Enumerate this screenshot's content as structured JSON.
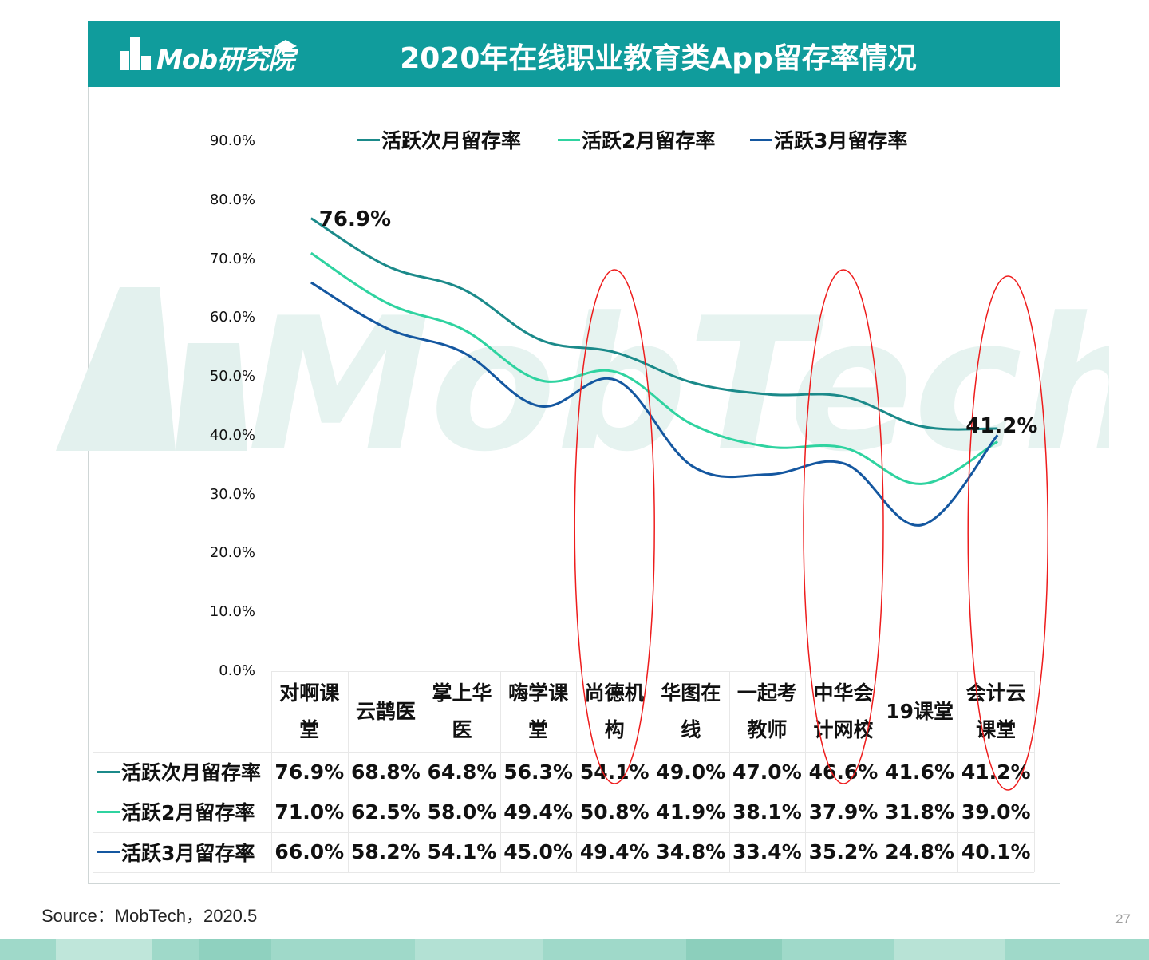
{
  "header": {
    "logo_text": "Mob研究院",
    "title": "2020年在线职业教育类App留存率情况"
  },
  "watermark": {
    "text": "MobTech袤博"
  },
  "footer": {
    "source": "Source：MobTech，2020.5",
    "page_number": "27"
  },
  "colors": {
    "series1": "#1b8a8a",
    "series2": "#2fd3a0",
    "series3": "#1457a0",
    "highlight": "#ee1c1c",
    "header": "#109c9c"
  },
  "chart_data": {
    "type": "line",
    "title": "2020年在线职业教育类App留存率情况",
    "yticks": [
      "90.0%",
      "80.0%",
      "70.0%",
      "60.0%",
      "50.0%",
      "40.0%",
      "30.0%",
      "20.0%",
      "10.0%",
      "0.0%"
    ],
    "ylim": [
      0,
      90
    ],
    "categories": [
      [
        "对啊课",
        "堂"
      ],
      [
        "云鹊医"
      ],
      [
        "掌上华",
        "医"
      ],
      [
        "嗨学课",
        "堂"
      ],
      [
        "尚德机",
        "构"
      ],
      [
        "华图在",
        "线"
      ],
      [
        "一起考",
        "教师"
      ],
      [
        "中华会",
        "计网校"
      ],
      [
        "19课堂"
      ],
      [
        "会计云",
        "课堂"
      ]
    ],
    "series": [
      {
        "name": "活跃次月留存率",
        "values": [
          76.9,
          68.8,
          64.8,
          56.3,
          54.1,
          49.0,
          47.0,
          46.6,
          41.6,
          41.2
        ],
        "labels": [
          "76.9%",
          "68.8%",
          "64.8%",
          "56.3%",
          "54.1%",
          "49.0%",
          "47.0%",
          "46.6%",
          "41.6%",
          "41.2%"
        ]
      },
      {
        "name": "活跃2月留存率",
        "values": [
          71.0,
          62.5,
          58.0,
          49.4,
          50.8,
          41.9,
          38.1,
          37.9,
          31.8,
          39.0
        ],
        "labels": [
          "71.0%",
          "62.5%",
          "58.0%",
          "49.4%",
          "50.8%",
          "41.9%",
          "38.1%",
          "37.9%",
          "31.8%",
          "39.0%"
        ]
      },
      {
        "name": "活跃3月留存率",
        "values": [
          66.0,
          58.2,
          54.1,
          45.0,
          49.4,
          34.8,
          33.4,
          35.2,
          24.8,
          40.1
        ],
        "labels": [
          "66.0%",
          "58.2%",
          "54.1%",
          "45.0%",
          "49.4%",
          "34.8%",
          "33.4%",
          "35.2%",
          "24.8%",
          "40.1%"
        ]
      }
    ],
    "annotations": [
      {
        "series": 0,
        "index": 0,
        "text": "76.9%"
      },
      {
        "series": 0,
        "index": 9,
        "text": "41.2%"
      }
    ],
    "highlighted_categories": [
      4,
      7,
      9
    ]
  }
}
